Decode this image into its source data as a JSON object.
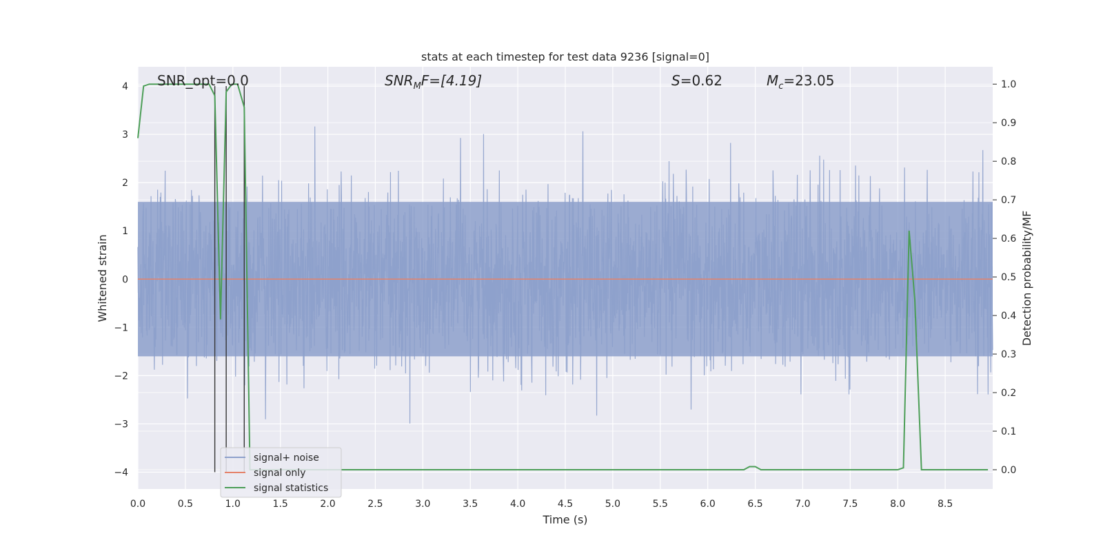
{
  "chart_data": {
    "type": "line",
    "title": "stats at each timestep for test data 9236 [signal=0]",
    "xlabel": "Time (s)",
    "ylabel": "Whitened strain",
    "ylabel_right": "Detection probability/MF",
    "xlim": [
      0.0,
      9.0
    ],
    "ylim": [
      -4.35,
      4.4
    ],
    "ylim_right": [
      -0.05,
      1.045
    ],
    "x_ticks": [
      "0.0",
      "0.5",
      "1.0",
      "1.5",
      "2.0",
      "2.5",
      "3.0",
      "3.5",
      "4.0",
      "4.5",
      "5.0",
      "5.5",
      "6.0",
      "6.5",
      "7.0",
      "7.5",
      "8.0",
      "8.5"
    ],
    "x_tick_values": [
      0.0,
      0.5,
      1.0,
      1.5,
      2.0,
      2.5,
      3.0,
      3.5,
      4.0,
      4.5,
      5.0,
      5.5,
      6.0,
      6.5,
      7.0,
      7.5,
      8.0,
      8.5
    ],
    "y_ticks": [
      "−4",
      "−3",
      "−2",
      "−1",
      "0",
      "1",
      "2",
      "3",
      "4"
    ],
    "y_tick_values": [
      -4,
      -3,
      -2,
      -1,
      0,
      1,
      2,
      3,
      4
    ],
    "y_ticks_right": [
      "0.0",
      "0.1",
      "0.2",
      "0.3",
      "0.4",
      "0.5",
      "0.6",
      "0.7",
      "0.8",
      "0.9",
      "1.0"
    ],
    "y_tick_values_right": [
      0.0,
      0.1,
      0.2,
      0.3,
      0.4,
      0.5,
      0.6,
      0.7,
      0.8,
      0.9,
      1.0
    ],
    "grid": true,
    "legend_placement": "lower-left",
    "annotations": {
      "snr_opt": "SNR_opt=0.0",
      "snr_mf_main": "SNR",
      "snr_mf_sub": "M",
      "snr_mf_rest": "F=[4.19]",
      "s_main": "S",
      "s_rest": "=0.62",
      "mc_main": "M",
      "mc_sub": "c",
      "mc_rest": "=23.05"
    },
    "vertical_lines_x": [
      0.81,
      0.93,
      1.12
    ],
    "series": [
      {
        "name": "signal+ noise",
        "color": "#8da0cb",
        "axis": "left",
        "noise_std": 0.9,
        "band_envelope": 1.6,
        "peak_envelope": 4.0,
        "x_range": [
          0.0,
          9.0
        ]
      },
      {
        "name": "signal only",
        "color": "#e5826a",
        "axis": "left",
        "x": [
          0.0,
          9.0
        ],
        "y": [
          0.0,
          0.0
        ]
      },
      {
        "name": "signal statistics",
        "color": "#4c9e57",
        "axis": "right",
        "x": [
          0.0,
          0.06,
          0.12,
          0.18,
          0.25,
          0.5,
          0.7,
          0.75,
          0.81,
          0.87,
          0.93,
          0.99,
          1.05,
          1.12,
          1.18,
          1.25,
          1.5,
          2.0,
          3.0,
          4.0,
          5.0,
          6.0,
          6.38,
          6.44,
          6.5,
          6.56,
          7.0,
          7.5,
          8.0,
          8.06,
          8.12,
          8.18,
          8.25,
          8.5,
          8.95
        ],
        "y": [
          0.86,
          0.995,
          1.0,
          1.0,
          1.0,
          1.0,
          1.0,
          1.0,
          0.97,
          0.39,
          0.98,
          1.0,
          1.0,
          0.94,
          0.0,
          0.0,
          0.0,
          0.0,
          0.0,
          0.0,
          0.0,
          0.0,
          0.0,
          0.008,
          0.008,
          0.0,
          0.0,
          0.0,
          0.0,
          0.005,
          0.62,
          0.44,
          0.0,
          0.0,
          0.0
        ]
      }
    ]
  }
}
